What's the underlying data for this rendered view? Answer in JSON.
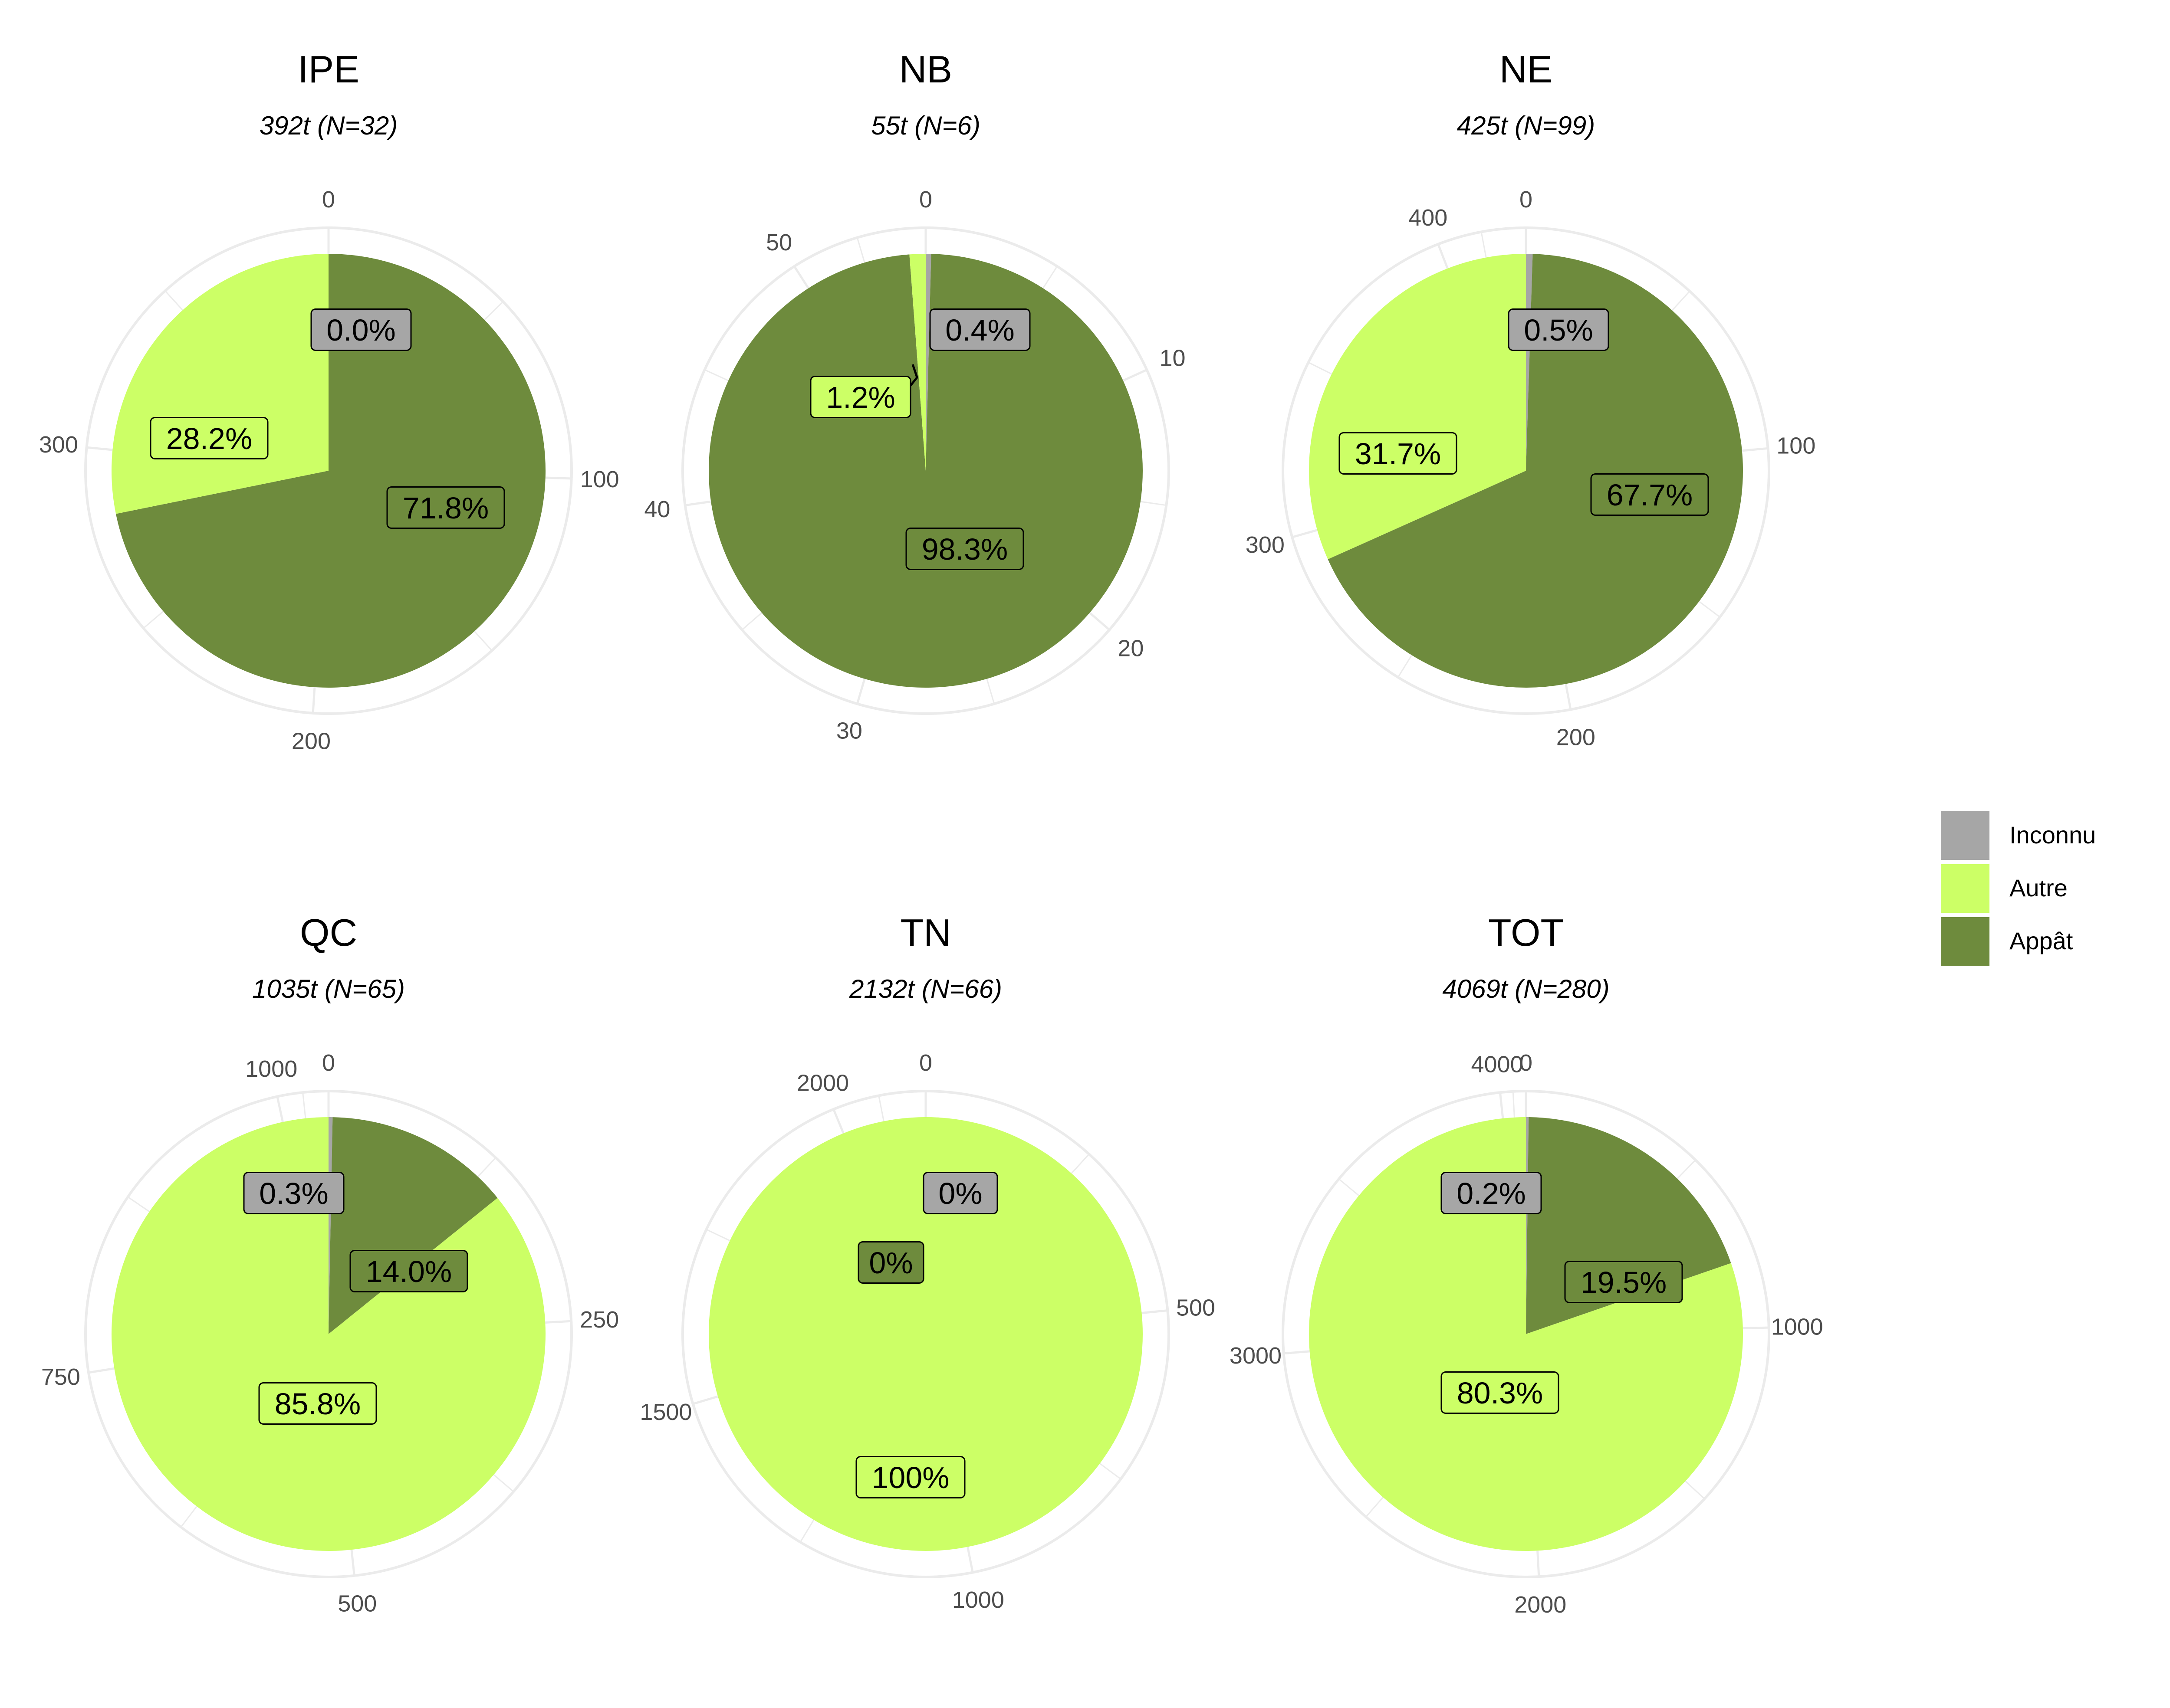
{
  "chart_data": [
    {
      "type": "pie",
      "title": "IPE",
      "subtitle": "392t (N=32)",
      "categories": [
        "Inconnu",
        "Autre",
        "Appât"
      ],
      "values": [
        0.0,
        110.5,
        281.5
      ],
      "labels": [
        "0.0%",
        "28.2%",
        "71.8%"
      ],
      "ticks": [
        0,
        100,
        200,
        300
      ],
      "total": 392
    },
    {
      "type": "pie",
      "title": "NB",
      "subtitle": "55t (N=6)",
      "categories": [
        "Inconnu",
        "Autre",
        "Appât"
      ],
      "values": [
        0.22,
        0.66,
        54.12
      ],
      "labels": [
        "0.4%",
        "1.2%",
        "98.3%"
      ],
      "ticks": [
        0,
        10,
        20,
        30,
        40,
        50
      ],
      "total": 55
    },
    {
      "type": "pie",
      "title": "NE",
      "subtitle": "425t (N=99)",
      "categories": [
        "Inconnu",
        "Autre",
        "Appât"
      ],
      "values": [
        2.1,
        134.7,
        288.2
      ],
      "labels": [
        "0.5%",
        "31.7%",
        "67.7%"
      ],
      "ticks": [
        0,
        100,
        200,
        300,
        400
      ],
      "total": 425
    },
    {
      "type": "pie",
      "title": "QC",
      "subtitle": "1035t (N=65)",
      "categories": [
        "Inconnu",
        "Autre",
        "Appât"
      ],
      "values": [
        3.1,
        888.0,
        143.9
      ],
      "labels": [
        "0.3%",
        "85.8%",
        "14.0%"
      ],
      "ticks": [
        0,
        250,
        500,
        750,
        1000
      ],
      "total": 1035
    },
    {
      "type": "pie",
      "title": "TN",
      "subtitle": "2132t (N=66)",
      "categories": [
        "Inconnu",
        "Autre",
        "Appât"
      ],
      "values": [
        0,
        2132,
        0
      ],
      "labels": [
        "0%",
        "100%",
        "0%"
      ],
      "ticks": [
        0,
        500,
        1000,
        1500,
        2000
      ],
      "total": 2132
    },
    {
      "type": "pie",
      "title": "TOT",
      "subtitle": "4069t (N=280)",
      "categories": [
        "Inconnu",
        "Autre",
        "Appât"
      ],
      "values": [
        8.1,
        3267.4,
        793.5
      ],
      "labels": [
        "0.2%",
        "80.3%",
        "19.5%"
      ],
      "ticks": [
        0,
        1000,
        2000,
        3000,
        4000
      ],
      "total": 4069
    }
  ],
  "legend": {
    "items": [
      {
        "name": "Inconnu",
        "color": "#a6a6a6"
      },
      {
        "name": "Autre",
        "color": "#ccff66"
      },
      {
        "name": "Appât",
        "color": "#6e8b3d"
      }
    ]
  },
  "colors": {
    "Inconnu": "#a6a6a6",
    "Autre": "#ccff66",
    "Appât": "#6e8b3d",
    "grid": "#ebebeb"
  }
}
